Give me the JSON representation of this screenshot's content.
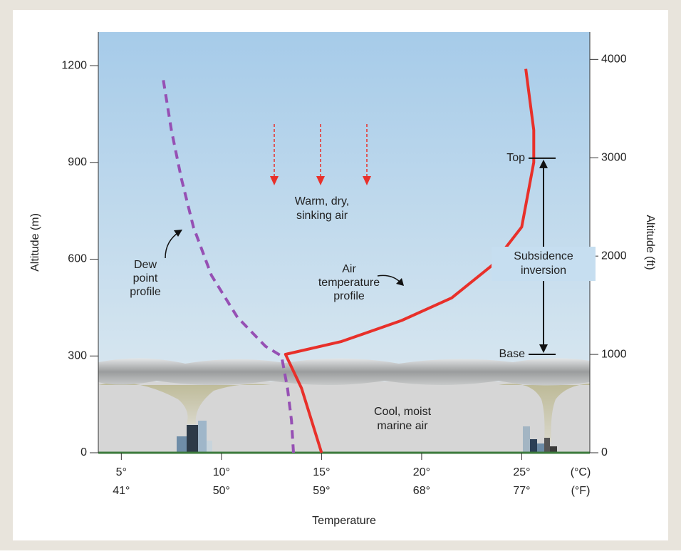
{
  "chart_data": {
    "type": "line",
    "x_label": "Temperature",
    "y_label": "Altitude (m)",
    "y2_label": "Altitude (ft)",
    "xlim": [
      3.85,
      28.4
    ],
    "xticks": [
      {
        "value": 5,
        "label": "5°"
      },
      {
        "value": 10,
        "label": "10°"
      },
      {
        "value": 15,
        "label": "15°"
      },
      {
        "value": 20,
        "label": "20°"
      },
      {
        "value": 25,
        "label": "25°"
      }
    ],
    "xtick_labels_f": [
      "41°",
      "50°",
      "59°",
      "68°",
      "77°"
    ],
    "x_units": [
      "(°C)",
      "(°F)"
    ],
    "ylim": [
      0,
      1304
    ],
    "yticks": [
      0,
      300,
      600,
      900,
      1200
    ],
    "y2lim": [
      0,
      4278
    ],
    "y2ticks": [
      0,
      1000,
      2000,
      3000,
      4000
    ],
    "series": [
      {
        "name": "Dew point profile",
        "color": "#9650b4",
        "dashed": true,
        "x": [
          7.1,
          7.5,
          8.0,
          8.6,
          9.5,
          10.8,
          12.2,
          13.0,
          13.3,
          13.5,
          13.6
        ],
        "values": [
          1155,
          1000,
          850,
          700,
          550,
          420,
          330,
          300,
          200,
          100,
          0
        ]
      },
      {
        "name": "Air temperature profile",
        "color": "#e8302a",
        "dashed": false,
        "x": [
          25.2,
          25.6,
          25.6,
          25.0,
          23.5,
          21.5,
          19.0,
          16.0,
          13.2,
          14.0,
          15.0
        ],
        "values": [
          1190,
          1000,
          900,
          700,
          580,
          480,
          410,
          345,
          305,
          200,
          0
        ]
      }
    ],
    "inversion": {
      "top_label": "Top",
      "top": 913,
      "base_label": "Base",
      "base": 305,
      "label": [
        "Subsidence",
        "inversion"
      ]
    },
    "annotations": {
      "sinking_air": [
        "Warm, dry,",
        "sinking air"
      ],
      "dew_point": [
        "Dew",
        "point",
        "profile"
      ],
      "air_temperature": [
        "Air",
        "temperature",
        "profile"
      ],
      "marine_air": [
        "Cool, moist",
        "marine air"
      ]
    }
  }
}
